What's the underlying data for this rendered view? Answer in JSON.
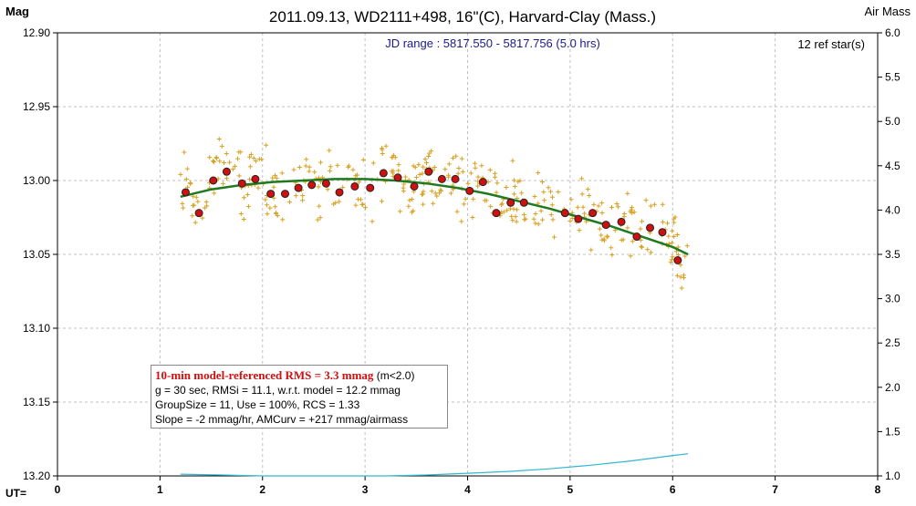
{
  "chart_data": {
    "type": "scatter",
    "title": "2011.09.13, WD2111+498, 16\"(C), Harvard-Clay (Mass.)",
    "ylabel": "Mag",
    "y2label": "Air Mass",
    "xlabel": "UT=",
    "jd_range": "JD range : 5817.550 - 5817.756 (5.0 hrs)",
    "ref_stars": "12 ref star(s)",
    "xlim": [
      0,
      8
    ],
    "ylim": [
      13.2,
      12.9
    ],
    "y2lim": [
      1.0,
      6.0
    ],
    "x_ticks": [
      "0",
      "1",
      "2",
      "3",
      "4",
      "5",
      "6",
      "7",
      "8"
    ],
    "y_ticks": [
      "12.90",
      "12.95",
      "13.00",
      "13.05",
      "13.10",
      "13.15",
      "13.20"
    ],
    "y2_ticks": [
      "1.0",
      "1.5",
      "2.0",
      "2.5",
      "3.0",
      "3.5",
      "4.0",
      "4.5",
      "5.0",
      "5.5",
      "6.0"
    ],
    "grid": true,
    "colors": {
      "raw": "#d8a020",
      "binned": "#d01010",
      "model": "#1f7a1f",
      "airmass": "#30b8d0",
      "grid": "#c0c0c0",
      "jd_text": "#1a1a8c"
    },
    "series": [
      {
        "kind": "binned",
        "x": [
          1.25,
          1.38,
          1.52,
          1.65,
          1.8,
          1.93,
          2.08,
          2.22,
          2.35,
          2.48,
          2.62,
          2.75,
          2.9,
          3.05,
          3.18,
          3.32,
          3.48,
          3.62,
          3.75,
          3.88,
          4.02,
          4.15,
          4.28,
          4.42,
          4.55,
          4.95,
          5.08,
          5.22,
          5.35,
          5.5,
          5.65,
          5.78,
          5.9,
          6.05
        ],
        "y": [
          13.008,
          13.022,
          13.0,
          12.994,
          13.002,
          12.999,
          13.009,
          13.009,
          13.005,
          13.003,
          13.002,
          13.008,
          13.004,
          13.005,
          12.995,
          12.998,
          13.004,
          12.994,
          12.999,
          12.999,
          13.007,
          13.001,
          13.022,
          13.015,
          13.015,
          13.022,
          13.026,
          13.022,
          13.03,
          13.028,
          13.038,
          13.032,
          13.035,
          13.054
        ]
      },
      {
        "kind": "model",
        "x": [
          1.2,
          1.5,
          1.8,
          2.1,
          2.4,
          2.7,
          3.0,
          3.3,
          3.6,
          3.9,
          4.2,
          4.5,
          4.8,
          5.1,
          5.4,
          5.7,
          6.0,
          6.15
        ],
        "y": [
          13.011,
          13.006,
          13.003,
          13.001,
          13.0,
          12.999,
          12.999,
          13.0,
          13.002,
          13.005,
          13.009,
          13.014,
          13.019,
          13.025,
          13.031,
          13.038,
          13.045,
          13.05
        ]
      },
      {
        "kind": "airmass",
        "x": [
          1.2,
          1.6,
          2.0,
          2.4,
          2.8,
          3.2,
          3.6,
          4.0,
          4.4,
          4.8,
          5.2,
          5.6,
          6.0,
          6.15
        ],
        "y": [
          1.02,
          1.01,
          1.0,
          1.0,
          1.0,
          1.0,
          1.01,
          1.03,
          1.05,
          1.08,
          1.12,
          1.17,
          1.23,
          1.25
        ]
      }
    ]
  },
  "info": {
    "rms_label": "10-min model-referenced RMS = 3.3 mmag",
    "rms_cond": "(m<2.0)",
    "line2": "g = 30 sec, RMSi = 11.1, w.r.t. model = 12.2 mmag",
    "line3": "GroupSize = 11, Use = 100%, RCS = 1.33",
    "line4": "Slope = -2 mmag/hr, AMCurv = +217 mmag/airmass"
  }
}
